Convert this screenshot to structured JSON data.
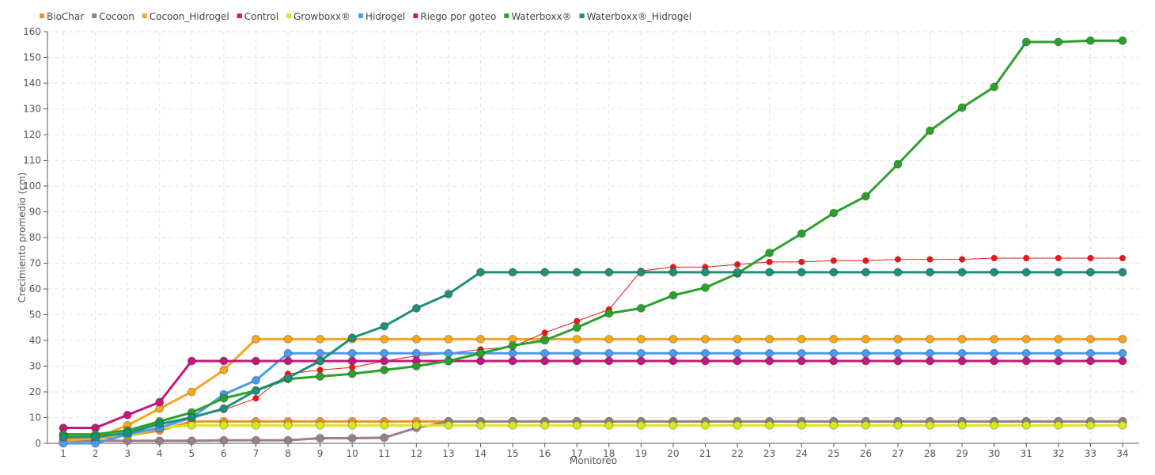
{
  "chart_data": {
    "type": "line",
    "xlabel": "Monitoreo",
    "ylabel": "Crecimiento promedio (cm)",
    "ylim": [
      0,
      160
    ],
    "yticks": [
      0,
      10,
      20,
      30,
      40,
      50,
      60,
      70,
      80,
      90,
      100,
      110,
      120,
      130,
      140,
      150,
      160
    ],
    "categories": [
      "1",
      "2",
      "3",
      "4",
      "5",
      "6",
      "7",
      "8",
      "9",
      "10",
      "11",
      "12",
      "13",
      "14",
      "15",
      "16",
      "17",
      "18",
      "19",
      "20",
      "21",
      "22",
      "23",
      "24",
      "25",
      "26",
      "27",
      "28",
      "29",
      "30",
      "31",
      "32",
      "33",
      "34"
    ],
    "grid": true,
    "legend_position": "top-left",
    "series": [
      {
        "name": "BioChar",
        "color": "#f28e2b",
        "values": [
          2,
          2,
          3,
          5,
          8.5,
          8.5,
          8.5,
          8.5,
          8.5,
          8.5,
          8.5,
          8.5,
          8.5,
          8.5,
          8.5,
          8.5,
          8.5,
          8.5,
          8.5,
          8.5,
          8.5,
          8.5,
          8.5,
          8.5,
          8.5,
          8.5,
          8.5,
          8.5,
          8.5,
          8.5,
          8.5,
          8.5,
          8.5,
          8.5
        ]
      },
      {
        "name": "Cocoon",
        "color": "#9c7f85",
        "values": [
          1,
          1,
          1,
          1,
          1,
          1.2,
          1.2,
          1.2,
          2,
          2,
          2.2,
          6,
          8.5,
          8.5,
          8.5,
          8.5,
          8.5,
          8.5,
          8.5,
          8.5,
          8.5,
          8.5,
          8.5,
          8.5,
          8.5,
          8.5,
          8.5,
          8.5,
          8.5,
          8.5,
          8.5,
          8.5,
          8.5,
          8.5
        ]
      },
      {
        "name": "Cocoon_Hidrogel",
        "color": "#f5a623",
        "values": [
          1,
          2,
          7,
          13.5,
          20,
          28.5,
          40.5,
          40.5,
          40.5,
          40.5,
          40.5,
          40.5,
          40.5,
          40.5,
          40.5,
          40.5,
          40.5,
          40.5,
          40.5,
          40.5,
          40.5,
          40.5,
          40.5,
          40.5,
          40.5,
          40.5,
          40.5,
          40.5,
          40.5,
          40.5,
          40.5,
          40.5,
          40.5,
          40.5
        ]
      },
      {
        "name": "Control",
        "color": "#e31a1c",
        "values": [
          3,
          3,
          4,
          6,
          10,
          13,
          17.5,
          27,
          28.5,
          29.5,
          32,
          34,
          35,
          36.5,
          37.5,
          43,
          47.5,
          52,
          67,
          68.5,
          68.5,
          69.5,
          70.5,
          70.5,
          71,
          71,
          71.5,
          71.5,
          71.5,
          72,
          72,
          72,
          72,
          72
        ]
      },
      {
        "name": "Growboxx®",
        "color": "#d4ea1a",
        "values": [
          3,
          3,
          3,
          6,
          7,
          7,
          7,
          7,
          7,
          7,
          7,
          7,
          7,
          7,
          7,
          7,
          7,
          7,
          7,
          7,
          7,
          7,
          7,
          7,
          7,
          7,
          7,
          7,
          7,
          7,
          7,
          7,
          7,
          7
        ]
      },
      {
        "name": "Hidrogel",
        "color": "#4c9be8",
        "values": [
          0,
          0,
          3.5,
          6,
          10,
          19,
          24.5,
          35,
          35,
          35,
          35,
          35,
          35,
          35,
          35,
          35,
          35,
          35,
          35,
          35,
          35,
          35,
          35,
          35,
          35,
          35,
          35,
          35,
          35,
          35,
          35,
          35,
          35,
          35
        ]
      },
      {
        "name": "Riego por goteo",
        "color": "#c2177b",
        "values": [
          6,
          6,
          11,
          16,
          32,
          32,
          32,
          32,
          32,
          32,
          32,
          32,
          32,
          32,
          32,
          32,
          32,
          32,
          32,
          32,
          32,
          32,
          32,
          32,
          32,
          32,
          32,
          32,
          32,
          32,
          32,
          32,
          32,
          32
        ]
      },
      {
        "name": "Waterboxx®",
        "color": "#2ca02c",
        "values": [
          3.5,
          3.5,
          5,
          8.5,
          12,
          17.5,
          20.5,
          25,
          26,
          27,
          28.5,
          30,
          32,
          35,
          38,
          40,
          45,
          50.5,
          52.5,
          57.5,
          60.5,
          66,
          74,
          81.5,
          89.5,
          96,
          108.5,
          121.5,
          130.5,
          138.5,
          156,
          156,
          156.5,
          156.5
        ]
      },
      {
        "name": "Waterboxx®_Hidrogel",
        "color": "#1f8f7a",
        "values": [
          2.5,
          2.5,
          4,
          7.5,
          10,
          13.5,
          20.5,
          25.5,
          32,
          41,
          45.5,
          52.5,
          58,
          66.5,
          66.5,
          66.5,
          66.5,
          66.5,
          66.5,
          66.5,
          66.5,
          66.5,
          66.5,
          66.5,
          66.5,
          66.5,
          66.5,
          66.5,
          66.5,
          66.5,
          66.5,
          66.5,
          66.5,
          66.5
        ]
      }
    ]
  }
}
